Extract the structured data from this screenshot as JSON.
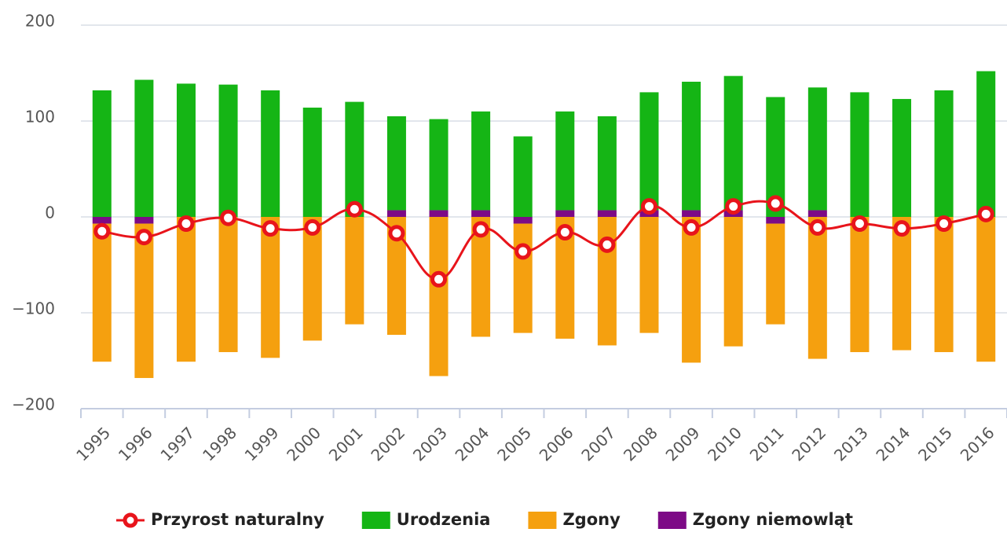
{
  "chart_data": {
    "type": "stacked-bar-line",
    "categories": [
      "1995",
      "1996",
      "1997",
      "1998",
      "1999",
      "2000",
      "2001",
      "2002",
      "2003",
      "2004",
      "2005",
      "2006",
      "2007",
      "2008",
      "2009",
      "2010",
      "2011",
      "2012",
      "2013",
      "2014",
      "2015",
      "2016"
    ],
    "series": [
      {
        "name": "Przyrost naturalny",
        "type": "line",
        "color": "#e8141b",
        "values": [
          -15,
          -21,
          -7,
          -1,
          -12,
          -11,
          8,
          -17,
          -65,
          -13,
          -36,
          -16,
          -29,
          11,
          -11,
          11,
          14,
          -11,
          -7,
          -12,
          -7,
          3
        ]
      },
      {
        "name": "Urodzenia",
        "type": "bar",
        "color": "#15b515",
        "values": [
          132,
          143,
          139,
          138,
          132,
          114,
          120,
          98,
          95,
          103,
          84,
          103,
          98,
          123,
          134,
          140,
          125,
          128,
          130,
          123,
          132,
          152
        ]
      },
      {
        "name": "Zgony",
        "type": "bar",
        "color": "#f5a00f",
        "values": [
          -144,
          -161,
          -151,
          -141,
          -147,
          -129,
          -112,
          -123,
          -166,
          -125,
          -114,
          -127,
          -134,
          -121,
          -152,
          -135,
          -105,
          -148,
          -141,
          -139,
          -141,
          -151
        ]
      },
      {
        "name": "Zgony niemowląt",
        "type": "bar",
        "color": "#7d0a86",
        "values": [
          -7,
          -7,
          0,
          0,
          0,
          0,
          0,
          7,
          7,
          7,
          -7,
          7,
          7,
          7,
          7,
          7,
          -7,
          7,
          0,
          0,
          0,
          0
        ]
      }
    ],
    "ylim": [
      -200,
      200
    ],
    "yticks": [
      {
        "value": -200,
        "label": "−200"
      },
      {
        "value": -100,
        "label": "−100"
      },
      0,
      100,
      200
    ],
    "grid": true
  }
}
